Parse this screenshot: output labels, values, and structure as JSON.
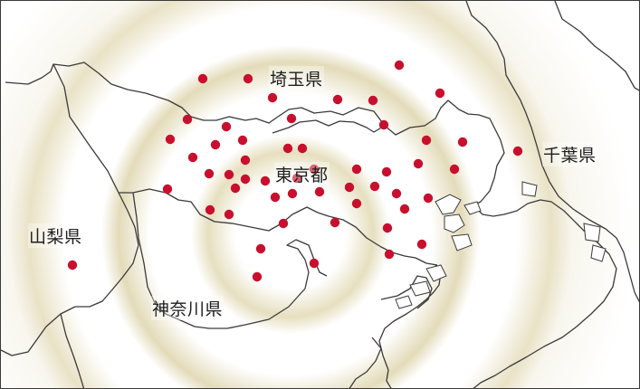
{
  "regions": {
    "saitama": "埼玉県",
    "chiba": "千葉県",
    "tokyo": "東京都",
    "yamanashi": "山梨県",
    "kanagawa": "神奈川県"
  },
  "colors": {
    "ring_outer": "#f1eed9",
    "ring_middle": "#e8e2c4",
    "ring_inner": "#ddd4aa",
    "marker": "#c8102e",
    "border": "#3a3a3a"
  },
  "marker_count": 53
}
